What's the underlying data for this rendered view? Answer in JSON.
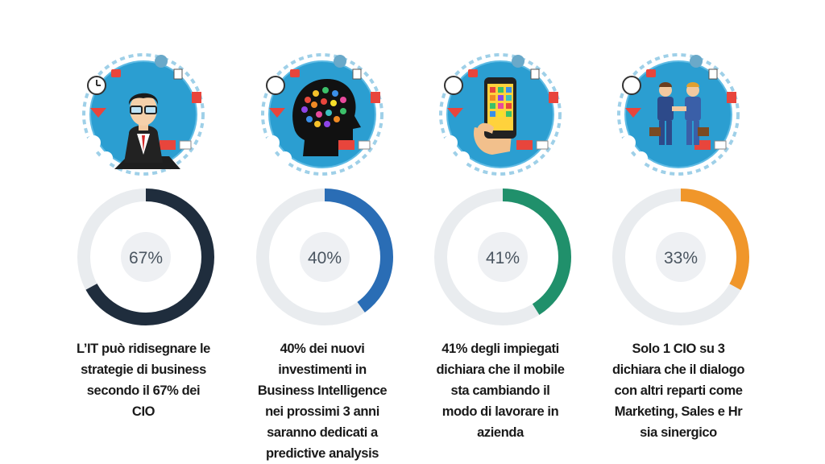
{
  "chart_data": [
    {
      "type": "pie",
      "value": 67,
      "label": "67%",
      "color": "#1f2d3d",
      "track_color": "#e9ecef",
      "icon": "businessman-icon",
      "caption_lines": [
        "L’IT può ridisegnare le",
        "strategie di business",
        "secondo il 67% dei",
        "CIO"
      ]
    },
    {
      "type": "pie",
      "value": 40,
      "label": "40%",
      "color": "#2a6db5",
      "track_color": "#e9ecef",
      "icon": "brain-icon",
      "caption_lines": [
        "40% dei nuovi",
        "investimenti in",
        "Business Intelligence",
        "nei prossimi 3 anni",
        "saranno dedicati a",
        "predictive analysis"
      ]
    },
    {
      "type": "pie",
      "value": 41,
      "label": "41%",
      "color": "#20906b",
      "track_color": "#e9ecef",
      "icon": "smartphone-icon",
      "caption_lines": [
        "41% degli impiegati",
        "dichiara che il mobile",
        "sta cambiando il",
        "modo di lavorare in",
        "azienda"
      ]
    },
    {
      "type": "pie",
      "value": 33,
      "label": "33%",
      "color": "#f0962a",
      "track_color": "#e9ecef",
      "icon": "handshake-icon",
      "caption_lines": [
        "Solo 1 CIO su 3",
        "dichiara che il dialogo",
        "con altri reparti come",
        "Marketing, Sales e Hr",
        "sia sinergico"
      ]
    }
  ]
}
